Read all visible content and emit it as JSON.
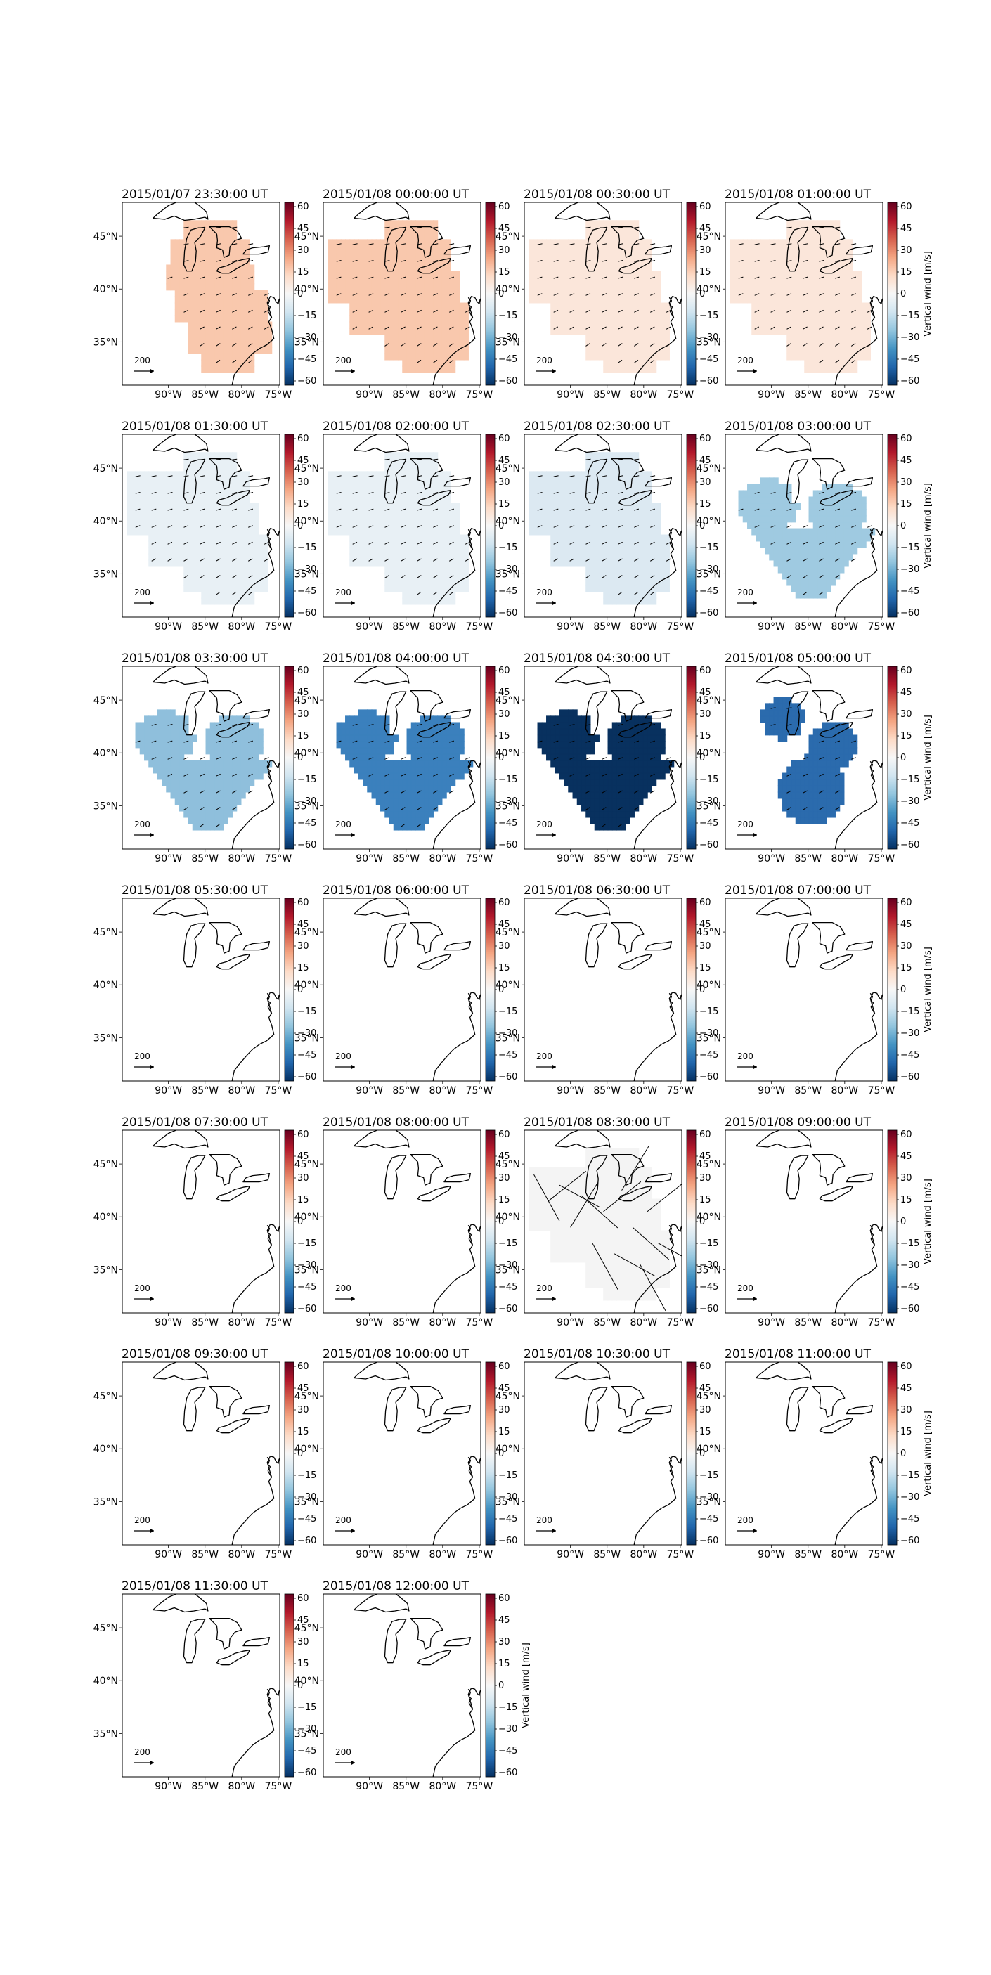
{
  "figure": {
    "colorbar_label": "Vertical wind [m/s]",
    "colorbar_ticks": [
      "60",
      "45",
      "30",
      "15",
      "0",
      "−15",
      "−30",
      "−45",
      "−60"
    ],
    "lon_ticks": [
      "90°W",
      "85°W",
      "80°W",
      "75°W"
    ],
    "lat_ticks": [
      "45°N",
      "40°N",
      "35°N"
    ],
    "arrow_scale_label": "200",
    "colormap": [
      "#67001f",
      "#b2182b",
      "#d6604d",
      "#f4a582",
      "#fddbc7",
      "#f7f7f7",
      "#d1e5f0",
      "#92c5de",
      "#4393c3",
      "#2166ac",
      "#053061"
    ]
  },
  "panels": [
    {
      "title": "2015/01/07 23:30:00 UT",
      "region": "big",
      "color": "#f9c8ad",
      "arrows": "normal",
      "colorbar_label": false
    },
    {
      "title": "2015/01/08 00:00:00 UT",
      "region": "big2",
      "color": "#f9c8ad",
      "arrows": "normal",
      "colorbar_label": false
    },
    {
      "title": "2015/01/08 00:30:00 UT",
      "region": "big2",
      "color": "#fbe6da",
      "arrows": "normal",
      "colorbar_label": false
    },
    {
      "title": "2015/01/08 01:00:00 UT",
      "region": "big2",
      "color": "#fbe6da",
      "arrows": "normal",
      "colorbar_label": true
    },
    {
      "title": "2015/01/08 01:30:00 UT",
      "region": "big2",
      "color": "#e8f0f5",
      "arrows": "normal",
      "colorbar_label": false
    },
    {
      "title": "2015/01/08 02:00:00 UT",
      "region": "big2",
      "color": "#e8f0f5",
      "arrows": "normal",
      "colorbar_label": false
    },
    {
      "title": "2015/01/08 02:30:00 UT",
      "region": "big2",
      "color": "#dce9f2",
      "arrows": "normal",
      "colorbar_label": false
    },
    {
      "title": "2015/01/08 03:00:00 UT",
      "region": "heart",
      "color": "#9fcae1",
      "arrows": "normal",
      "colorbar_label": true
    },
    {
      "title": "2015/01/08 03:30:00 UT",
      "region": "heart",
      "color": "#8fbfdc",
      "arrows": "normal",
      "colorbar_label": false
    },
    {
      "title": "2015/01/08 04:00:00 UT",
      "region": "heart",
      "color": "#3b80bd",
      "arrows": "normal",
      "colorbar_label": false
    },
    {
      "title": "2015/01/08 04:30:00 UT",
      "region": "heart",
      "color": "#08315f",
      "arrows": "normal",
      "colorbar_label": false
    },
    {
      "title": "2015/01/08 05:00:00 UT",
      "region": "split",
      "color": "#2b6bad",
      "arrows": "normal",
      "colorbar_label": true
    },
    {
      "title": "2015/01/08 05:30:00 UT",
      "region": "none",
      "color": "#ffffff",
      "arrows": "none",
      "colorbar_label": false
    },
    {
      "title": "2015/01/08 06:00:00 UT",
      "region": "none",
      "color": "#ffffff",
      "arrows": "none",
      "colorbar_label": false
    },
    {
      "title": "2015/01/08 06:30:00 UT",
      "region": "none",
      "color": "#ffffff",
      "arrows": "none",
      "colorbar_label": false
    },
    {
      "title": "2015/01/08 07:00:00 UT",
      "region": "none",
      "color": "#ffffff",
      "arrows": "none",
      "colorbar_label": true
    },
    {
      "title": "2015/01/08 07:30:00 UT",
      "region": "none",
      "color": "#ffffff",
      "arrows": "none",
      "colorbar_label": false
    },
    {
      "title": "2015/01/08 08:00:00 UT",
      "region": "none",
      "color": "#ffffff",
      "arrows": "none",
      "colorbar_label": false
    },
    {
      "title": "2015/01/08 08:30:00 UT",
      "region": "big2",
      "color": "#f4f4f4",
      "arrows": "long",
      "colorbar_label": false
    },
    {
      "title": "2015/01/08 09:00:00 UT",
      "region": "none",
      "color": "#ffffff",
      "arrows": "none",
      "colorbar_label": true
    },
    {
      "title": "2015/01/08 09:30:00 UT",
      "region": "none",
      "color": "#ffffff",
      "arrows": "none",
      "colorbar_label": false
    },
    {
      "title": "2015/01/08 10:00:00 UT",
      "region": "none",
      "color": "#ffffff",
      "arrows": "none",
      "colorbar_label": false
    },
    {
      "title": "2015/01/08 10:30:00 UT",
      "region": "none",
      "color": "#ffffff",
      "arrows": "none",
      "colorbar_label": false
    },
    {
      "title": "2015/01/08 11:00:00 UT",
      "region": "none",
      "color": "#ffffff",
      "arrows": "none",
      "colorbar_label": true
    },
    {
      "title": "2015/01/08 11:30:00 UT",
      "region": "none",
      "color": "#ffffff",
      "arrows": "none",
      "colorbar_label": false
    },
    {
      "title": "2015/01/08 12:00:00 UT",
      "region": "none",
      "color": "#ffffff",
      "arrows": "none",
      "colorbar_label": true
    }
  ]
}
